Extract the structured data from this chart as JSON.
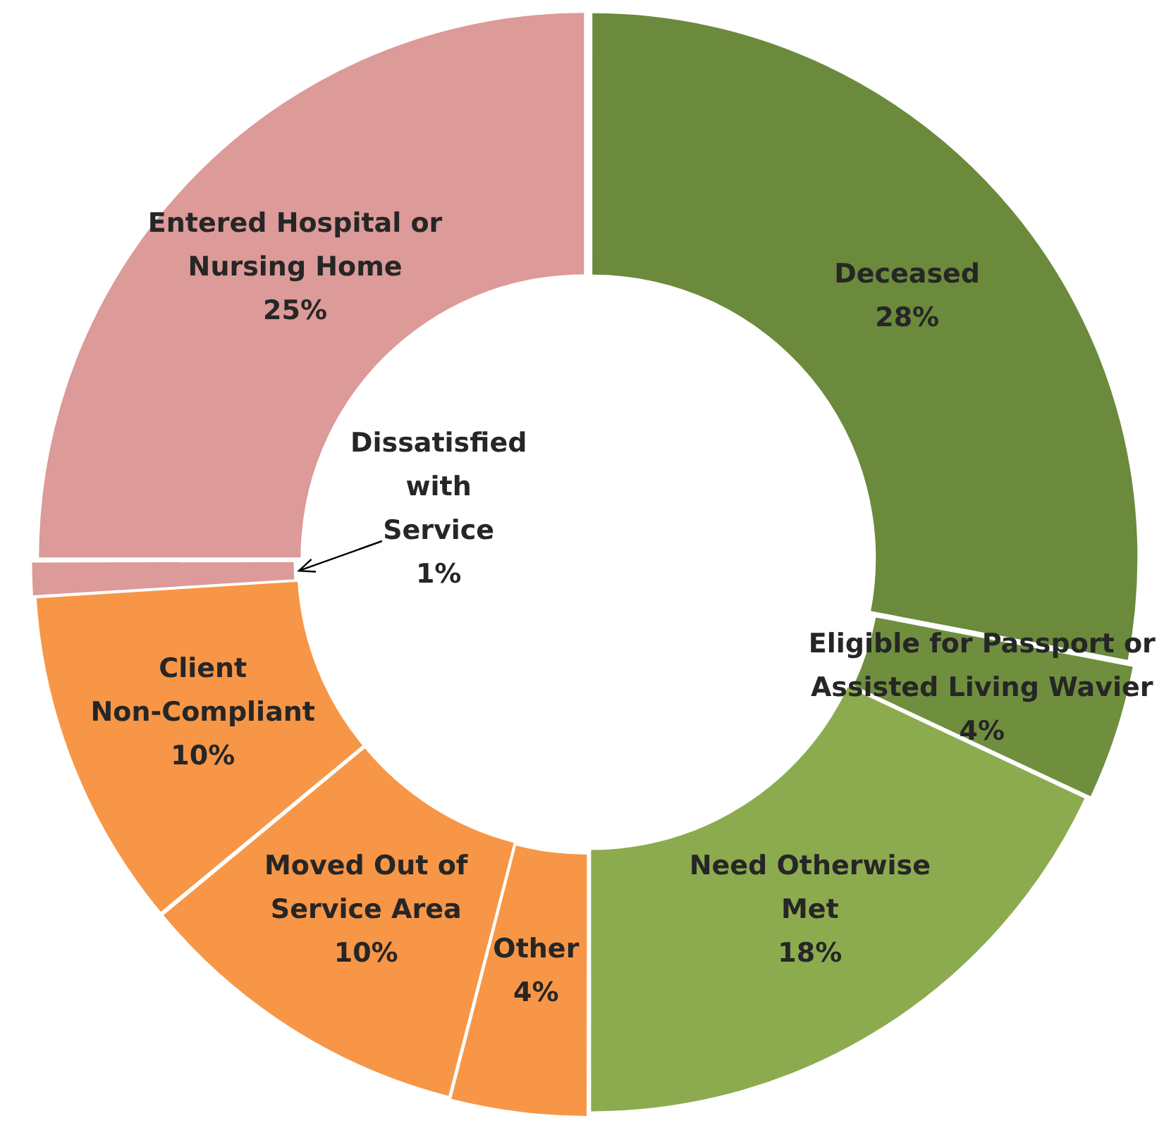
{
  "chart_data": {
    "type": "donut",
    "categories": [
      "Deceased",
      "Eligible for Passport or\nAssisted Living Wavier",
      "Need Otherwise\nMet",
      "Other",
      "Moved Out of\nService Area",
      "Client\nNon-Compliant",
      "Dissatisfied\nwith\nService",
      "Entered Hospital or\nNursing Home"
    ],
    "values": [
      28,
      4,
      18,
      4,
      10,
      10,
      1,
      25
    ],
    "colors": [
      "#6b8a3c",
      "#6f8f3f",
      "#8cab4f",
      "#f79646",
      "#f79646",
      "#f79646",
      "#dc9a98",
      "#dc9a98"
    ],
    "value_labels": [
      "28%",
      "4%",
      "18%",
      "4%",
      "10%",
      "10%",
      "1%",
      "25%"
    ],
    "legend": false
  }
}
